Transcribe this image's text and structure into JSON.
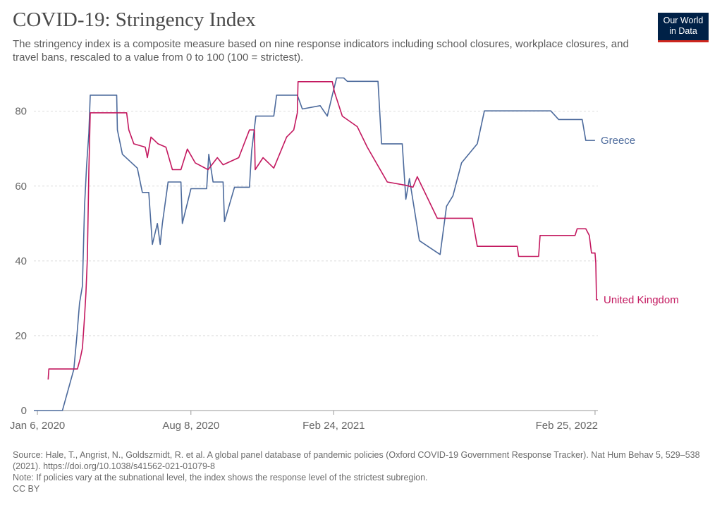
{
  "header": {
    "title": "COVID-19: Stringency Index",
    "subtitle": "The stringency index is a composite measure based on nine response indicators including school closures, workplace closures, and travel bans, rescaled to a value from 0 to 100 (100 = strictest).",
    "logo_line1": "Our World",
    "logo_line2": "in Data"
  },
  "footer": {
    "source": "Source: Hale, T., Angrist, N., Goldszmidt, R. et al. A global panel database of pandemic policies (Oxford COVID-19 Government Response Tracker). Nat Hum Behav 5, 529–538 (2021). https://doi.org/10.1038/s41562-021-01079-8",
    "note": "Note: If policies vary at the subnational level, the index shows the response level of the strictest subregion.",
    "license": "CC BY"
  },
  "colors": {
    "greece": "#4c6a9c",
    "united_kingdom": "#c3185f",
    "grid": "#dddddd",
    "axis": "#999999"
  },
  "chart_data": {
    "type": "line",
    "title": "COVID-19: Stringency Index",
    "xlabel": "",
    "ylabel": "",
    "ylim": [
      0,
      89
    ],
    "xlim": [
      "2020-01-01",
      "2022-03-01"
    ],
    "yticks": [
      0,
      20,
      40,
      60,
      80
    ],
    "xticks": [
      {
        "date": "2020-01-06",
        "label": "Jan 6, 2020"
      },
      {
        "date": "2020-08-08",
        "label": "Aug 8, 2020"
      },
      {
        "date": "2021-02-24",
        "label": "Feb 24, 2021"
      },
      {
        "date": "2022-02-25",
        "label": "Feb 25, 2022"
      }
    ],
    "grid": "horizontal dashed",
    "legend": "line-end labels, right",
    "series": [
      {
        "name": "Greece",
        "color": "#4c6a9c",
        "points": [
          [
            "2020-01-01",
            0
          ],
          [
            "2020-02-10",
            0
          ],
          [
            "2020-02-26",
            11
          ],
          [
            "2020-03-01",
            19.4
          ],
          [
            "2020-03-05",
            28.7
          ],
          [
            "2020-03-09",
            33.3
          ],
          [
            "2020-03-12",
            54.6
          ],
          [
            "2020-03-15",
            65.7
          ],
          [
            "2020-03-18",
            74.1
          ],
          [
            "2020-03-20",
            84.3
          ],
          [
            "2020-04-26",
            84.3
          ],
          [
            "2020-04-27",
            75
          ],
          [
            "2020-05-04",
            68.5
          ],
          [
            "2020-05-25",
            64.8
          ],
          [
            "2020-06-01",
            58.3
          ],
          [
            "2020-06-10",
            58.3
          ],
          [
            "2020-06-15",
            44.4
          ],
          [
            "2020-06-22",
            50
          ],
          [
            "2020-06-26",
            44.4
          ],
          [
            "2020-06-29",
            50
          ],
          [
            "2020-07-07",
            61.1
          ],
          [
            "2020-07-25",
            61.1
          ],
          [
            "2020-07-27",
            50
          ],
          [
            "2020-08-08",
            59.3
          ],
          [
            "2020-08-15",
            59.3
          ],
          [
            "2020-08-23",
            59.3
          ],
          [
            "2020-08-30",
            59.3
          ],
          [
            "2020-09-02",
            68.5
          ],
          [
            "2020-09-08",
            61.1
          ],
          [
            "2020-09-22",
            61.1
          ],
          [
            "2020-09-24",
            50.5
          ],
          [
            "2020-10-08",
            59.7
          ],
          [
            "2020-10-29",
            59.7
          ],
          [
            "2020-11-01",
            69.4
          ],
          [
            "2020-11-07",
            78.7
          ],
          [
            "2020-12-02",
            78.7
          ],
          [
            "2020-12-06",
            84.3
          ],
          [
            "2021-01-04",
            84.3
          ],
          [
            "2021-01-11",
            80.6
          ],
          [
            "2021-02-05",
            81.5
          ],
          [
            "2021-02-15",
            78.7
          ],
          [
            "2021-02-22",
            84.3
          ],
          [
            "2021-02-28",
            88.9
          ],
          [
            "2021-03-10",
            88.9
          ],
          [
            "2021-03-15",
            88
          ],
          [
            "2021-04-27",
            88
          ],
          [
            "2021-05-02",
            71.3
          ],
          [
            "2021-05-31",
            71.3
          ],
          [
            "2021-06-05",
            56.5
          ],
          [
            "2021-06-10",
            62
          ],
          [
            "2021-06-24",
            45.4
          ],
          [
            "2021-07-23",
            41.7
          ],
          [
            "2021-08-01",
            54.6
          ],
          [
            "2021-08-10",
            57.4
          ],
          [
            "2021-08-22",
            66.2
          ],
          [
            "2021-09-13",
            71.3
          ],
          [
            "2021-09-23",
            80.1
          ],
          [
            "2021-12-25",
            80.1
          ],
          [
            "2022-01-05",
            77.8
          ],
          [
            "2022-02-07",
            77.8
          ],
          [
            "2022-02-12",
            72.2
          ],
          [
            "2022-02-25",
            72.2
          ]
        ]
      },
      {
        "name": "United Kingdom",
        "color": "#c3185f",
        "points": [
          [
            "2020-01-21",
            8.3
          ],
          [
            "2020-01-22",
            11.1
          ],
          [
            "2020-03-02",
            11.1
          ],
          [
            "2020-03-06",
            13.9
          ],
          [
            "2020-03-09",
            16.7
          ],
          [
            "2020-03-12",
            25
          ],
          [
            "2020-03-14",
            31.5
          ],
          [
            "2020-03-16",
            40.7
          ],
          [
            "2020-03-18",
            63.9
          ],
          [
            "2020-03-20",
            79.6
          ],
          [
            "2020-05-10",
            79.6
          ],
          [
            "2020-05-13",
            75
          ],
          [
            "2020-05-20",
            71.3
          ],
          [
            "2020-06-05",
            70.4
          ],
          [
            "2020-06-08",
            67.6
          ],
          [
            "2020-06-13",
            73.1
          ],
          [
            "2020-06-23",
            71.3
          ],
          [
            "2020-07-04",
            70.4
          ],
          [
            "2020-07-13",
            64.4
          ],
          [
            "2020-07-25",
            64.4
          ],
          [
            "2020-08-03",
            69.9
          ],
          [
            "2020-08-14",
            66.2
          ],
          [
            "2020-09-01",
            64.4
          ],
          [
            "2020-09-14",
            67.6
          ],
          [
            "2020-09-22",
            65.7
          ],
          [
            "2020-10-14",
            67.6
          ],
          [
            "2020-10-29",
            75
          ],
          [
            "2020-11-05",
            75
          ],
          [
            "2020-11-06",
            64.4
          ],
          [
            "2020-11-17",
            67.6
          ],
          [
            "2020-12-02",
            64.8
          ],
          [
            "2020-12-20",
            73.1
          ],
          [
            "2020-12-30",
            75
          ],
          [
            "2021-01-04",
            79.6
          ],
          [
            "2021-01-05",
            87.9
          ],
          [
            "2021-02-22",
            87.9
          ],
          [
            "2021-02-25",
            85.2
          ],
          [
            "2021-03-08",
            78.7
          ],
          [
            "2021-03-29",
            75.9
          ],
          [
            "2021-04-12",
            70.4
          ],
          [
            "2021-05-10",
            61.1
          ],
          [
            "2021-06-05",
            60.2
          ],
          [
            "2021-06-15",
            59.7
          ],
          [
            "2021-06-21",
            62.5
          ],
          [
            "2021-07-19",
            51.4
          ],
          [
            "2021-09-06",
            51.4
          ],
          [
            "2021-09-13",
            43.9
          ],
          [
            "2021-11-08",
            43.9
          ],
          [
            "2021-11-10",
            41.2
          ],
          [
            "2021-12-08",
            41.2
          ],
          [
            "2021-12-10",
            46.8
          ],
          [
            "2022-01-28",
            46.8
          ],
          [
            "2022-01-31",
            48.6
          ],
          [
            "2022-02-12",
            48.6
          ],
          [
            "2022-02-17",
            46.8
          ],
          [
            "2022-02-20",
            42.1
          ],
          [
            "2022-02-25",
            42.1
          ],
          [
            "2022-02-26",
            39.4
          ],
          [
            "2022-02-27",
            29.6
          ],
          [
            "2022-03-01",
            29.6
          ]
        ]
      }
    ]
  }
}
